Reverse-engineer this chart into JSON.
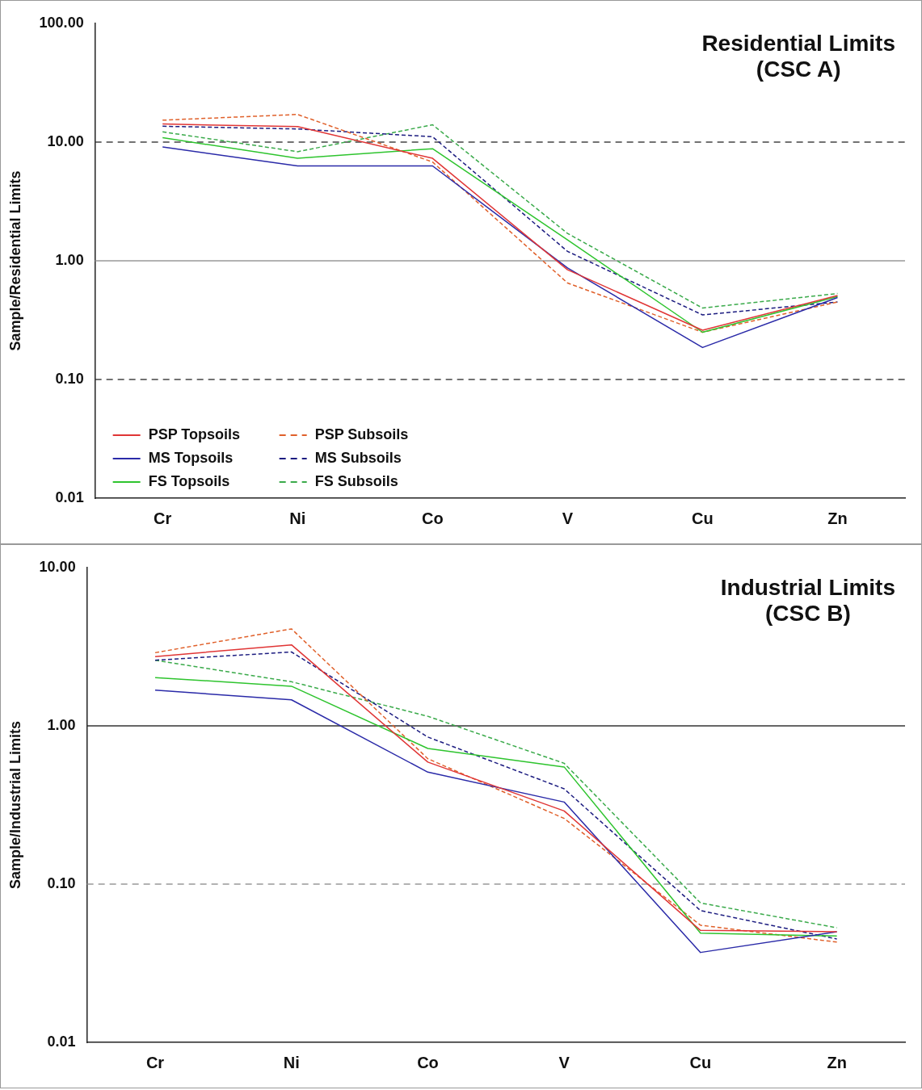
{
  "chart_data": [
    {
      "type": "line",
      "title": "Residential Limits\n(CSC A)",
      "ylabel": "Sample/Residential Limits",
      "categories": [
        "Cr",
        "Ni",
        "Co",
        "V",
        "Cu",
        "Zn"
      ],
      "log": "y",
      "ylim": [
        0.01,
        100
      ],
      "yticks": [
        {
          "value": 0.01,
          "label": "0.01"
        },
        {
          "value": 0.1,
          "label": "0.10"
        },
        {
          "value": 1,
          "label": "1.00"
        },
        {
          "value": 10,
          "label": "10.00"
        },
        {
          "value": 100,
          "label": "100.00"
        }
      ],
      "grid": false,
      "legend": "bottom left",
      "marker": "none",
      "ref_lines": [
        {
          "axis": "y",
          "value": 10,
          "color": "#444444",
          "line_style": "dashed"
        },
        {
          "axis": "y",
          "value": 1,
          "color": "#999999",
          "line_style": "solid"
        },
        {
          "axis": "y",
          "value": 0.1,
          "color": "#444444",
          "line_style": "dashed"
        }
      ],
      "series": [
        {
          "name": "PSP Topsoils",
          "color": "#e03535",
          "line_style": "solid",
          "values": [
            14.2,
            13.5,
            7.3,
            0.84,
            0.26,
            0.51
          ]
        },
        {
          "name": "MS Topsoils",
          "color": "#2a2aa8",
          "line_style": "solid",
          "values": [
            9.1,
            6.3,
            6.3,
            0.87,
            0.186,
            0.49
          ]
        },
        {
          "name": "FS Topsoils",
          "color": "#2ec42e",
          "line_style": "solid",
          "values": [
            10.9,
            7.3,
            8.8,
            1.5,
            0.25,
            0.5
          ]
        },
        {
          "name": "PSP Subsoils",
          "color": "#e0602a",
          "line_style": "dashed",
          "values": [
            15.3,
            17.1,
            6.8,
            0.65,
            0.25,
            0.45
          ]
        },
        {
          "name": "MS Subsoils",
          "color": "#1c1c80",
          "line_style": "dashed",
          "values": [
            13.6,
            12.9,
            11.1,
            1.2,
            0.35,
            0.45
          ]
        },
        {
          "name": "FS Subsoils",
          "color": "#3aaa4a",
          "line_style": "dashed",
          "values": [
            12.2,
            8.3,
            14,
            1.7,
            0.4,
            0.53
          ]
        }
      ]
    },
    {
      "type": "line",
      "title": "Industrial Limits\n(CSC B)",
      "ylabel": "Sample/Industrial Limits",
      "categories": [
        "Cr",
        "Ni",
        "Co",
        "V",
        "Cu",
        "Zn"
      ],
      "log": "y",
      "ylim": [
        0.01,
        10
      ],
      "yticks": [
        {
          "value": 0.01,
          "label": "0.01"
        },
        {
          "value": 0.1,
          "label": "0.10"
        },
        {
          "value": 1,
          "label": "1.00"
        },
        {
          "value": 10,
          "label": "10.00"
        }
      ],
      "grid": false,
      "marker": "none",
      "ref_lines": [
        {
          "axis": "y",
          "value": 1,
          "color": "#333333",
          "line_style": "solid"
        },
        {
          "axis": "y",
          "value": 0.1,
          "color": "#999999",
          "line_style": "dashed"
        }
      ],
      "series": [
        {
          "color": "#e03535",
          "line_style": "solid",
          "values": [
            2.74,
            3.25,
            0.59,
            0.29,
            0.051,
            0.05
          ]
        },
        {
          "color": "#2a2aa8",
          "line_style": "solid",
          "values": [
            1.68,
            1.46,
            0.51,
            0.33,
            0.037,
            0.05
          ]
        },
        {
          "color": "#2ec42e",
          "line_style": "solid",
          "values": [
            2.02,
            1.78,
            0.72,
            0.55,
            0.049,
            0.047
          ]
        },
        {
          "color": "#e0602a",
          "line_style": "dashed",
          "values": [
            2.9,
            4.1,
            0.62,
            0.26,
            0.055,
            0.043
          ]
        },
        {
          "color": "#1c1c80",
          "line_style": "dashed",
          "values": [
            2.6,
            2.93,
            0.85,
            0.4,
            0.068,
            0.045
          ]
        },
        {
          "color": "#3aaa4a",
          "line_style": "dashed",
          "values": [
            2.6,
            1.9,
            1.15,
            0.58,
            0.076,
            0.053
          ]
        }
      ]
    }
  ]
}
